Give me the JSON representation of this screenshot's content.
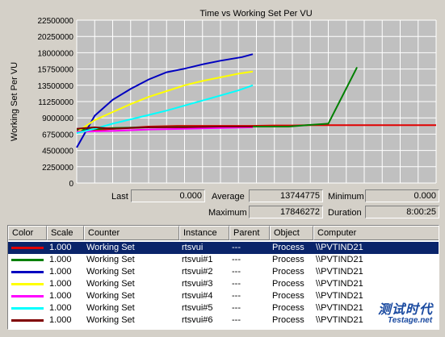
{
  "chart_data": {
    "type": "line",
    "title": "Time vs Working Set Per VU",
    "ylabel": "Working Set Per VU",
    "xlabel": "",
    "ylim": [
      0,
      22500000
    ],
    "yticks": [
      "22500000",
      "20250000",
      "18000000",
      "15750000",
      "13500000",
      "11250000",
      "9000000",
      "6750000",
      "4500000",
      "2250000",
      "0"
    ],
    "xlim": [
      0,
      100
    ],
    "grid": true,
    "series": [
      {
        "color": "#e00000",
        "points": [
          [
            0,
            7100000
          ],
          [
            10,
            7500000
          ],
          [
            20,
            7800000
          ],
          [
            28,
            7900000
          ],
          [
            32,
            7900000
          ],
          [
            34,
            7900000
          ],
          [
            48,
            7900000
          ],
          [
            55,
            7950000
          ],
          [
            60,
            7950000
          ],
          [
            65,
            8000000
          ],
          [
            75,
            8000000
          ],
          [
            100,
            8000000
          ]
        ]
      },
      {
        "color": "#008000",
        "points": [
          [
            0,
            7300000
          ],
          [
            10,
            7600000
          ],
          [
            20,
            7700000
          ],
          [
            28,
            7750000
          ],
          [
            34,
            7750000
          ],
          [
            40,
            7800000
          ],
          [
            52,
            7800000
          ],
          [
            59,
            7800000
          ],
          [
            64,
            8000000
          ],
          [
            70,
            8200000
          ],
          [
            78,
            16000000
          ]
        ]
      },
      {
        "color": "#0000c0",
        "points": [
          [
            0,
            4900000
          ],
          [
            5,
            9300000
          ],
          [
            10,
            11500000
          ],
          [
            15,
            13000000
          ],
          [
            20,
            14300000
          ],
          [
            25,
            15300000
          ],
          [
            30,
            15800000
          ],
          [
            35,
            16400000
          ],
          [
            40,
            16900000
          ],
          [
            46,
            17400000
          ],
          [
            49,
            17800000
          ]
        ]
      },
      {
        "color": "#ffff00",
        "points": [
          [
            0,
            7000000
          ],
          [
            5,
            8700000
          ],
          [
            10,
            9800000
          ],
          [
            15,
            10900000
          ],
          [
            20,
            11900000
          ],
          [
            25,
            12700000
          ],
          [
            30,
            13500000
          ],
          [
            35,
            14100000
          ],
          [
            40,
            14600000
          ],
          [
            45,
            15100000
          ],
          [
            49,
            15400000
          ]
        ]
      },
      {
        "color": "#ff00ff",
        "points": [
          [
            0,
            7100000
          ],
          [
            10,
            7200000
          ],
          [
            20,
            7400000
          ],
          [
            30,
            7500000
          ],
          [
            40,
            7600000
          ],
          [
            49,
            7700000
          ]
        ]
      },
      {
        "color": "#00ffff",
        "points": [
          [
            0,
            6900000
          ],
          [
            5,
            7500000
          ],
          [
            10,
            8200000
          ],
          [
            15,
            8800000
          ],
          [
            20,
            9400000
          ],
          [
            25,
            10000000
          ],
          [
            30,
            10700000
          ],
          [
            35,
            11400000
          ],
          [
            40,
            12100000
          ],
          [
            45,
            12800000
          ],
          [
            49,
            13500000
          ]
        ]
      },
      {
        "color": "#800000",
        "points": [
          [
            0,
            7500000
          ],
          [
            5,
            7700000
          ],
          [
            10,
            7500000
          ],
          [
            15,
            7600000
          ],
          [
            20,
            7700000
          ],
          [
            25,
            7700000
          ],
          [
            30,
            7700000
          ],
          [
            35,
            7750000
          ],
          [
            40,
            7800000
          ],
          [
            45,
            7800000
          ],
          [
            49,
            7800000
          ]
        ]
      }
    ]
  },
  "stats": {
    "last_label": "Last",
    "last_value": "0.000",
    "average_label": "Average",
    "average_value": "13744775",
    "minimum_label": "Minimum",
    "minimum_value": "0.000",
    "maximum_label": "Maximum",
    "maximum_value": "17846272",
    "duration_label": "Duration",
    "duration_value": "8:00:25"
  },
  "table": {
    "headers": [
      "Color",
      "Scale",
      "Counter",
      "Instance",
      "Parent",
      "Object",
      "Computer"
    ],
    "rows": [
      {
        "color": "#e00000",
        "scale": "1.000",
        "counter": "Working Set",
        "instance": "rtsvui",
        "parent": "---",
        "object": "Process",
        "computer": "\\\\PVTIND21"
      },
      {
        "color": "#008000",
        "scale": "1.000",
        "counter": "Working Set",
        "instance": "rtsvui#1",
        "parent": "---",
        "object": "Process",
        "computer": "\\\\PVTIND21"
      },
      {
        "color": "#0000c0",
        "scale": "1.000",
        "counter": "Working Set",
        "instance": "rtsvui#2",
        "parent": "---",
        "object": "Process",
        "computer": "\\\\PVTIND21"
      },
      {
        "color": "#ffff00",
        "scale": "1.000",
        "counter": "Working Set",
        "instance": "rtsvui#3",
        "parent": "---",
        "object": "Process",
        "computer": "\\\\PVTIND21"
      },
      {
        "color": "#ff00ff",
        "scale": "1.000",
        "counter": "Working Set",
        "instance": "rtsvui#4",
        "parent": "---",
        "object": "Process",
        "computer": "\\\\PVTIND21"
      },
      {
        "color": "#00ffff",
        "scale": "1.000",
        "counter": "Working Set",
        "instance": "rtsvui#5",
        "parent": "---",
        "object": "Process",
        "computer": "\\\\PVTIND21"
      },
      {
        "color": "#800000",
        "scale": "1.000",
        "counter": "Working Set",
        "instance": "rtsvui#6",
        "parent": "---",
        "object": "Process",
        "computer": "\\\\PVTIND21"
      }
    ]
  },
  "watermark": {
    "cn": "测试时代",
    "en": "Testage.net"
  }
}
